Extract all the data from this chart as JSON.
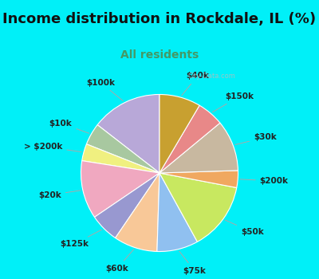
{
  "title": "Income distribution in Rockdale, IL (%)",
  "subtitle": "All residents",
  "labels": [
    "$100k",
    "$10k",
    "> $200k",
    "$20k",
    "$125k",
    "$60k",
    "$75k",
    "$50k",
    "$200k",
    "$30k",
    "$150k",
    "$40k"
  ],
  "values": [
    14.5,
    4.5,
    3.5,
    12.0,
    6.0,
    9.0,
    8.5,
    14.0,
    3.5,
    10.5,
    5.5,
    8.5
  ],
  "colors": [
    "#b8a8d8",
    "#a8c8a0",
    "#f0f080",
    "#f0a8c0",
    "#9898d0",
    "#f8c898",
    "#90c0f0",
    "#c8e860",
    "#f0a860",
    "#c8b8a0",
    "#e88888",
    "#c8a030"
  ],
  "bg_cyan": "#00f0f8",
  "bg_chart": "#e8f8f0",
  "startangle": 90,
  "title_fontsize": 13,
  "subtitle_fontsize": 10,
  "subtitle_color": "#449966",
  "label_fontsize": 7.5,
  "label_color": "#222222"
}
